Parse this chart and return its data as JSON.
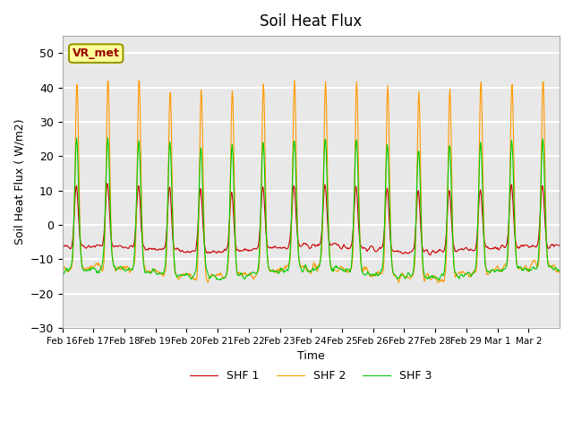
{
  "title": "Soil Heat Flux",
  "ylabel": "Soil Heat Flux ( W/m2)",
  "xlabel": "Time",
  "ylim": [
    -30,
    55
  ],
  "yticks": [
    -30,
    -20,
    -10,
    0,
    10,
    20,
    30,
    40,
    50
  ],
  "x_tick_labels": [
    "Feb 16",
    "Feb 17",
    "Feb 18",
    "Feb 19",
    "Feb 20",
    "Feb 21",
    "Feb 22",
    "Feb 23",
    "Feb 24",
    "Feb 25",
    "Feb 26",
    "Feb 27",
    "Feb 28",
    "Feb 29",
    "Mar 1",
    "Mar 2"
  ],
  "legend_labels": [
    "SHF 1",
    "SHF 2",
    "SHF 3"
  ],
  "colors": {
    "shf1": "#cc0000",
    "shf2": "#ff9900",
    "shf3": "#00cc00"
  },
  "annotation_text": "VR_met",
  "annotation_box_facecolor": "#ffff99",
  "annotation_box_edgecolor": "#999900",
  "plot_bg_color": "#e8e8e8",
  "grid_color": "white",
  "n_days": 16,
  "points_per_day": 48
}
